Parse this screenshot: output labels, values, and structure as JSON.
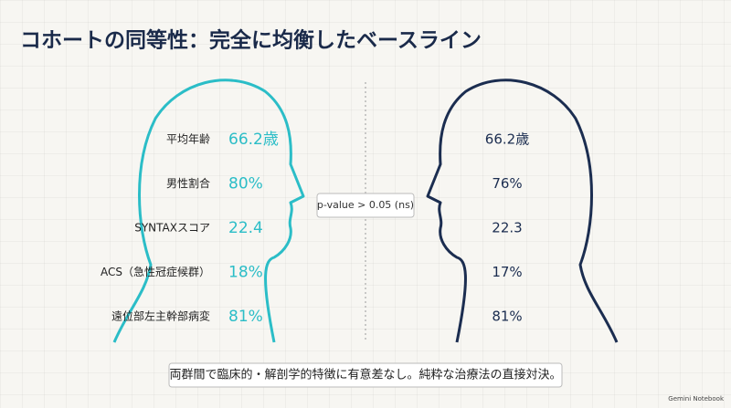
{
  "header": {
    "title": "コホートの同等性：完全に均衡したベースライン"
  },
  "rows": [
    {
      "label": "平均年齢",
      "left": "66.2歳",
      "right": "66.2歳"
    },
    {
      "label": "男性割合",
      "left": "80%",
      "right": "76%"
    },
    {
      "label": "SYNTAXスコア",
      "left": "22.4",
      "right": "22.3"
    },
    {
      "label": "ACS（急性冠症候群）",
      "left": "18%",
      "right": "17%"
    },
    {
      "label": "遠位部左主幹部病変",
      "left": "81%",
      "right": "81%"
    }
  ],
  "badge": "p-value > 0.05 (ns)",
  "footer": {
    "note": "両群間で臨床的・解剖学的特徴に有意差なし。純粋な治療法の直接対決。",
    "brand": "Gemini Notebook"
  }
}
